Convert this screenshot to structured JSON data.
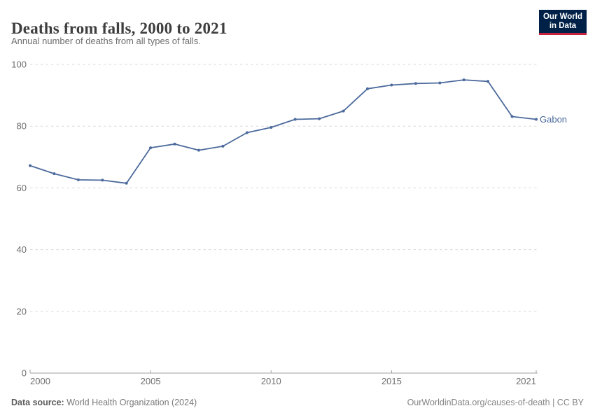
{
  "header": {
    "title": "Deaths from falls, 2000 to 2021",
    "subtitle": "Annual number of deaths from all types of falls.",
    "logo": {
      "line1": "Our World",
      "line2": "in Data"
    }
  },
  "footer": {
    "datasource_label": "Data source:",
    "datasource_text": " World Health Organization (2024)",
    "right_text": "OurWorldinData.org/causes-of-death | CC BY"
  },
  "colors": {
    "series_blue": "#4C6A9C",
    "logo_bg": "#002147",
    "logo_red": "#C6203E",
    "gridline": "#d9d9d9",
    "axis": "#a1a1a1",
    "tick_label": "#6e6e6e"
  },
  "chart_data": {
    "type": "line",
    "title": "Deaths from falls, 2000 to 2021",
    "subtitle": "Annual number of deaths from all types of falls.",
    "xlabel": "",
    "ylabel": "",
    "xlim": [
      2000,
      2021
    ],
    "ylim": [
      0,
      100
    ],
    "grid": true,
    "legend_position": "end-of-line",
    "yticks": [
      {
        "value": 0,
        "label": "0"
      },
      {
        "value": 20,
        "label": "20"
      },
      {
        "value": 40,
        "label": "40"
      },
      {
        "value": 60,
        "label": "60"
      },
      {
        "value": 80,
        "label": "80"
      },
      {
        "value": 100,
        "label": "100"
      }
    ],
    "xticks": [
      {
        "value": 2000,
        "label": "2000"
      },
      {
        "value": 2005,
        "label": "2005"
      },
      {
        "value": 2010,
        "label": "2010"
      },
      {
        "value": 2015,
        "label": "2015"
      },
      {
        "value": 2021,
        "label": "2021"
      }
    ],
    "series": [
      {
        "name": "Gabon",
        "x": [
          2000,
          2001,
          2002,
          2003,
          2004,
          2005,
          2006,
          2007,
          2008,
          2009,
          2010,
          2011,
          2012,
          2013,
          2014,
          2015,
          2016,
          2017,
          2018,
          2019,
          2020,
          2021
        ],
        "values": [
          67.2,
          64.6,
          62.6,
          62.5,
          61.5,
          73.0,
          74.2,
          72.2,
          73.5,
          77.9,
          79.6,
          82.2,
          82.4,
          84.9,
          92.1,
          93.3,
          93.8,
          94.0,
          95.0,
          94.5,
          83.1,
          82.2
        ]
      }
    ]
  }
}
